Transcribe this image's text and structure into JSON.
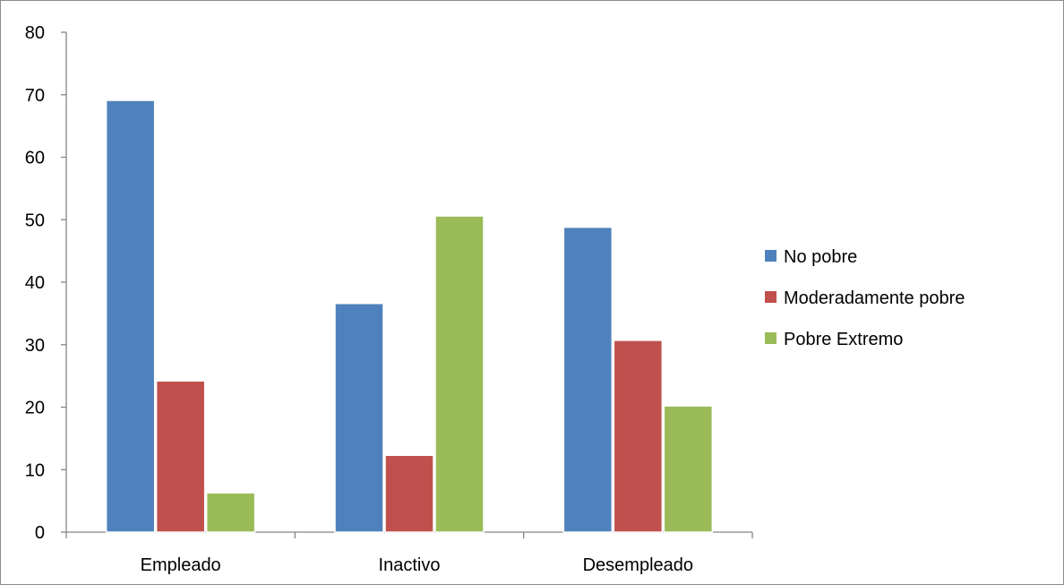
{
  "chart_data": {
    "type": "bar",
    "title": "",
    "xlabel": "",
    "ylabel": "",
    "categories": [
      "Empleado",
      "Inactivo",
      "Desempleado"
    ],
    "series": [
      {
        "name": "No pobre",
        "color": "#4f81bd",
        "values": [
          69.1,
          36.6,
          48.8
        ]
      },
      {
        "name": "Moderadamente pobre",
        "color": "#c0504d",
        "values": [
          24.2,
          12.3,
          30.7
        ]
      },
      {
        "name": "Pobre Extremo",
        "color": "#9bbb59",
        "values": [
          6.3,
          50.6,
          20.2
        ]
      }
    ],
    "ylim": [
      0,
      80
    ],
    "yticks": [
      0,
      10,
      20,
      30,
      40,
      50,
      60,
      70,
      80
    ],
    "grid": false,
    "legend_position": "right"
  }
}
